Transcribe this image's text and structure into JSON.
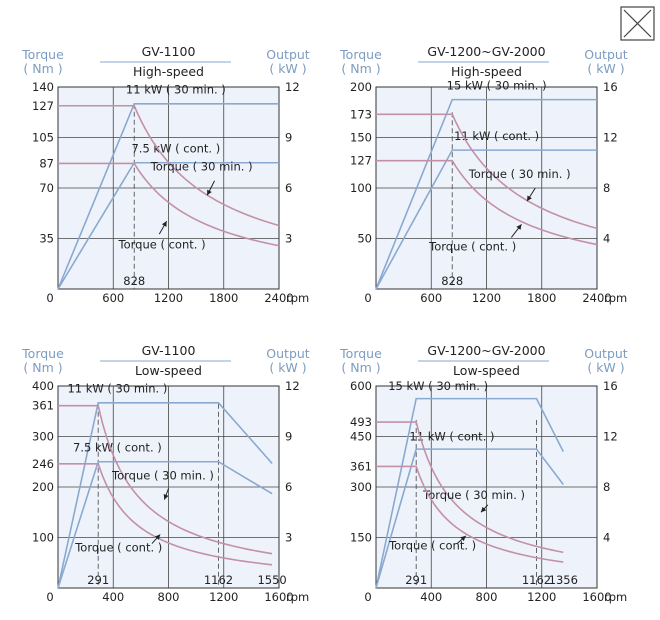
{
  "colors": {
    "output_line": "#8aa9d0",
    "torque_line": "#c390a8",
    "axis_label": "#7c9cc0",
    "plot_bg": "#eef3fb",
    "grid": "#444444",
    "dash": "#555555"
  },
  "close_button": {
    "icon": "close-icon"
  },
  "chart_data": [
    {
      "type": "line",
      "model": "GV-1100",
      "mode": "High-speed",
      "left_axis_title": [
        "Torque",
        "( Nm )"
      ],
      "right_axis_title": [
        "Output",
        "( kW )"
      ],
      "x_unit": "rpm",
      "xlim": [
        0,
        2400
      ],
      "x_ticks": [
        0,
        600,
        1200,
        1800,
        2400
      ],
      "x_tick_labels": [
        "0",
        "600",
        "1200",
        "1800",
        "2400"
      ],
      "x_grid": [
        600,
        1200,
        1800
      ],
      "ylim": [
        0,
        140
      ],
      "y_ticks": [
        35,
        70,
        87,
        105,
        127,
        140
      ],
      "y_tick_labels": [
        "35",
        "70",
        "87",
        "105",
        "127",
        "140"
      ],
      "y_grid": [
        35,
        70,
        105
      ],
      "y2lim": [
        0,
        12
      ],
      "y2_ticks": [
        3,
        6,
        9,
        12
      ],
      "y2_tick_labels": [
        "3",
        "6",
        "9",
        "12"
      ],
      "base_speed": 828,
      "base_speed_label": "828",
      "max_speed": 2400,
      "max_speed_label": "",
      "dashed_x": [
        828
      ],
      "series": [
        {
          "name": "11 kW ( 30 min. )",
          "kind": "output",
          "peak": 11,
          "end": 11,
          "label_pos": [
            1280,
            11.6
          ]
        },
        {
          "name": "7.5 kW ( cont. )",
          "kind": "output",
          "peak": 7.5,
          "end": 7.5,
          "label_pos": [
            1280,
            8.1
          ]
        },
        {
          "name": "Torque ( 30 min. )",
          "kind": "torque",
          "peak": 127,
          "end": 44,
          "label_pos": [
            1560,
            82
          ],
          "arrow": [
            [
              1700,
              75
            ],
            [
              1620,
              65
            ]
          ]
        },
        {
          "name": "Torque ( cont. )",
          "kind": "torque",
          "peak": 87,
          "end": 30,
          "label_pos": [
            1130,
            28
          ],
          "arrow": [
            [
              1100,
              38
            ],
            [
              1180,
              47
            ]
          ]
        }
      ]
    },
    {
      "type": "line",
      "model": "GV-1200~GV-2000",
      "mode": "High-speed",
      "left_axis_title": [
        "Torque",
        "( Nm )"
      ],
      "right_axis_title": [
        "Output",
        "( kW )"
      ],
      "x_unit": "rpm",
      "xlim": [
        0,
        2400
      ],
      "x_ticks": [
        0,
        600,
        1200,
        1800,
        2400
      ],
      "x_tick_labels": [
        "0",
        "600",
        "1200",
        "1800",
        "2400"
      ],
      "x_grid": [
        600,
        1200,
        1800
      ],
      "ylim": [
        0,
        200
      ],
      "y_ticks": [
        50,
        100,
        127,
        150,
        173,
        200
      ],
      "y_tick_labels": [
        "50",
        "100",
        "127",
        "150",
        "173",
        "200"
      ],
      "y_grid": [
        50,
        100,
        150
      ],
      "y2lim": [
        0,
        16
      ],
      "y2_ticks": [
        4,
        8,
        12,
        16
      ],
      "y2_tick_labels": [
        "4",
        "8",
        "12",
        "16"
      ],
      "base_speed": 828,
      "base_speed_label": "828",
      "max_speed": 2400,
      "max_speed_label": "",
      "dashed_x": [
        828
      ],
      "series": [
        {
          "name": "15 kW ( 30 min. )",
          "kind": "output",
          "peak": 15,
          "end": 15,
          "label_pos": [
            1310,
            15.8
          ]
        },
        {
          "name": "11 kW ( cont. )",
          "kind": "output",
          "peak": 11,
          "end": 11,
          "label_pos": [
            1310,
            11.8
          ]
        },
        {
          "name": "Torque ( 30 min. )",
          "kind": "torque",
          "peak": 173,
          "end": 60,
          "label_pos": [
            1560,
            110
          ],
          "arrow": [
            [
              1730,
              100
            ],
            [
              1640,
              87
            ]
          ]
        },
        {
          "name": "Torque ( cont. )",
          "kind": "torque",
          "peak": 127,
          "end": 44,
          "label_pos": [
            1050,
            38
          ],
          "arrow": [
            [
              1470,
              51
            ],
            [
              1580,
              64
            ]
          ]
        }
      ]
    },
    {
      "type": "line",
      "model": "GV-1100",
      "mode": "Low-speed",
      "left_axis_title": [
        "Torque",
        "( Nm )"
      ],
      "right_axis_title": [
        "Output",
        "( kW )"
      ],
      "x_unit": "rpm",
      "xlim": [
        0,
        1600
      ],
      "x_ticks": [
        0,
        400,
        800,
        1200,
        1600
      ],
      "x_tick_labels": [
        "0",
        "400",
        "800",
        "1200",
        "1600"
      ],
      "x_grid": [
        400,
        800,
        1200
      ],
      "ylim": [
        0,
        400
      ],
      "y_ticks": [
        100,
        200,
        246,
        300,
        361,
        400
      ],
      "y_tick_labels": [
        "100",
        "200",
        "246",
        "300",
        "361",
        "400"
      ],
      "y_grid": [
        100,
        200,
        300
      ],
      "y2lim": [
        0,
        12
      ],
      "y2_ticks": [
        3,
        6,
        9,
        12
      ],
      "y2_tick_labels": [
        "3",
        "6",
        "9",
        "12"
      ],
      "base_speed": 291,
      "base_speed_label": "291",
      "max_speed": 1550,
      "max_speed_label": "1550",
      "dashed_x": [
        291,
        1162
      ],
      "knee_speed": 1162,
      "knee_label": "1162",
      "series": [
        {
          "name": "11 kW ( 30 min. )",
          "kind": "output",
          "peak": 11,
          "end": 11,
          "knee": 1162,
          "drop": 7.4,
          "label_pos": [
            430,
            11.6
          ]
        },
        {
          "name": "7.5 kW ( cont. )",
          "kind": "output",
          "peak": 7.5,
          "end": 7.5,
          "knee": 1162,
          "drop": 5.6,
          "label_pos": [
            430,
            8.1
          ]
        },
        {
          "name": "Torque ( 30 min. )",
          "kind": "torque",
          "peak": 361,
          "end": 68,
          "label_pos": [
            760,
            215
          ],
          "arrow": [
            [
              800,
              197
            ],
            [
              770,
              175
            ]
          ]
        },
        {
          "name": "Torque ( cont. )",
          "kind": "torque",
          "peak": 246,
          "end": 46,
          "label_pos": [
            440,
            72
          ],
          "arrow": [
            [
              680,
              88
            ],
            [
              740,
              106
            ]
          ]
        }
      ]
    },
    {
      "type": "line",
      "model": "GV-1200~GV-2000",
      "mode": "Low-speed",
      "left_axis_title": [
        "Torque",
        "( Nm )"
      ],
      "right_axis_title": [
        "Output",
        "( kW )"
      ],
      "x_unit": "rpm",
      "xlim": [
        0,
        1600
      ],
      "x_ticks": [
        0,
        400,
        800,
        1200,
        1600
      ],
      "x_tick_labels": [
        "0",
        "400",
        "800",
        "1200",
        "1600"
      ],
      "x_grid": [
        400,
        800,
        1200
      ],
      "ylim": [
        0,
        600
      ],
      "y_ticks": [
        150,
        300,
        361,
        450,
        493,
        600
      ],
      "y_tick_labels": [
        "150",
        "300",
        "361",
        "450",
        "493",
        "600"
      ],
      "y_grid": [
        150,
        300,
        450
      ],
      "y2lim": [
        0,
        16
      ],
      "y2_ticks": [
        4,
        8,
        12,
        16
      ],
      "y2_tick_labels": [
        "4",
        "8",
        "12",
        "16"
      ],
      "base_speed": 291,
      "base_speed_label": "291",
      "max_speed": 1356,
      "max_speed_label": "1356",
      "dashed_x": [
        291,
        1162
      ],
      "knee_speed": 1162,
      "knee_label": "1162",
      "series": [
        {
          "name": "15 kW ( 30 min. )",
          "kind": "output",
          "peak": 15,
          "end": 15,
          "knee": 1162,
          "drop": 10.8,
          "label_pos": [
            450,
            15.7
          ]
        },
        {
          "name": "11 kW ( cont. )",
          "kind": "output",
          "peak": 11,
          "end": 11,
          "knee": 1162,
          "drop": 8.2,
          "label_pos": [
            550,
            11.7
          ]
        },
        {
          "name": "Torque ( 30 min. )",
          "kind": "torque",
          "peak": 493,
          "end": 106,
          "label_pos": [
            710,
            265
          ],
          "arrow": [
            [
              810,
              247
            ],
            [
              760,
              225
            ]
          ]
        },
        {
          "name": "Torque ( cont. )",
          "kind": "torque",
          "peak": 361,
          "end": 77,
          "label_pos": [
            410,
            115
          ],
          "arrow": [
            [
              590,
              133
            ],
            [
              650,
              155
            ]
          ]
        }
      ]
    }
  ]
}
